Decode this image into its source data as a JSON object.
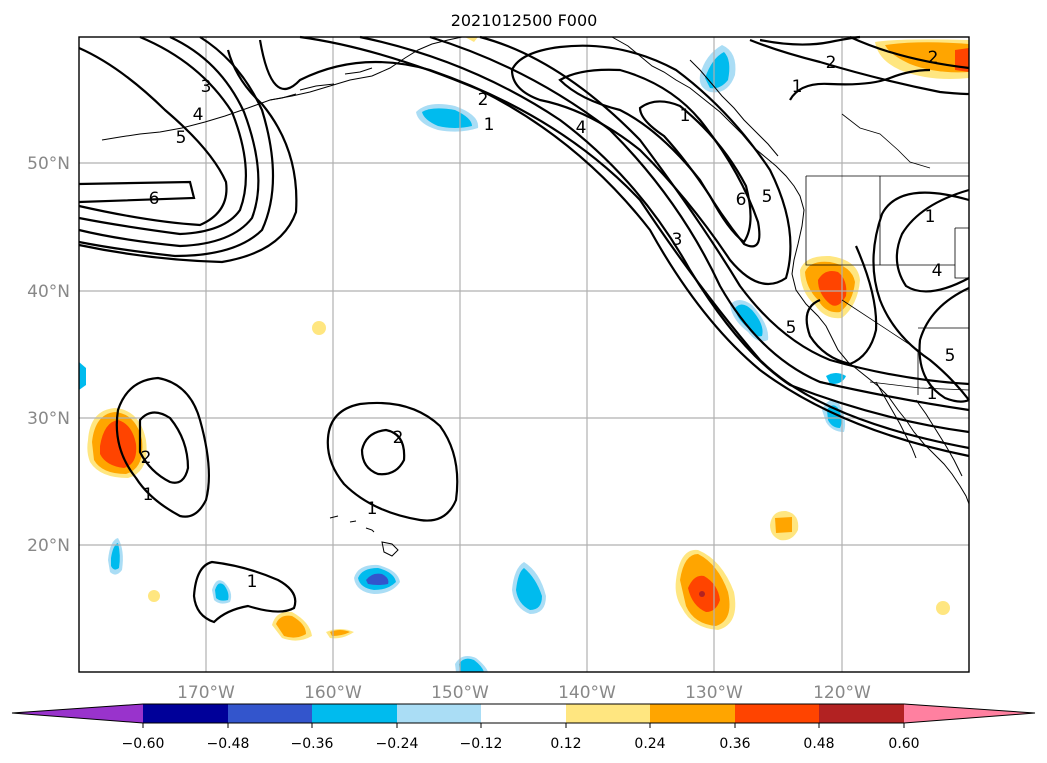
{
  "title": "2021012500 F000",
  "lat_labels": [
    "50°N",
    "40°N",
    "30°N",
    "20°N"
  ],
  "lon_labels": [
    "170°W",
    "160°W",
    "150°W",
    "140°W",
    "130°W",
    "120°W"
  ],
  "colorbar": {
    "ticks": [
      "−0.60",
      "−0.48",
      "−0.36",
      "−0.24",
      "−0.12",
      "0.12",
      "0.24",
      "0.36",
      "0.48",
      "0.60"
    ],
    "colors": [
      "#9933cc",
      "#000099",
      "#3355cc",
      "#00bbee",
      "#aaddf5",
      "#ffffff",
      "#ffe680",
      "#ffa500",
      "#ff4400",
      "#b22222",
      "#ff80a0"
    ]
  },
  "contour_labels": [
    "6",
    "5",
    "4",
    "3",
    "2",
    "1",
    "2",
    "1",
    "6",
    "5",
    "4",
    "3",
    "2",
    "1",
    "2",
    "1",
    "1",
    "2",
    "1",
    "5",
    "4",
    "5",
    "1",
    "1"
  ],
  "map_data": {
    "lon_range": [
      -180,
      -110
    ],
    "lat_range": [
      10,
      60
    ],
    "fill_colors": {
      "light_blue": "#aaddf5",
      "blue": "#00bbee",
      "dark_blue": "#3355cc",
      "yellow": "#ffe680",
      "orange": "#ffa500",
      "red_orange": "#ff4400",
      "dark_red": "#b22222"
    }
  }
}
